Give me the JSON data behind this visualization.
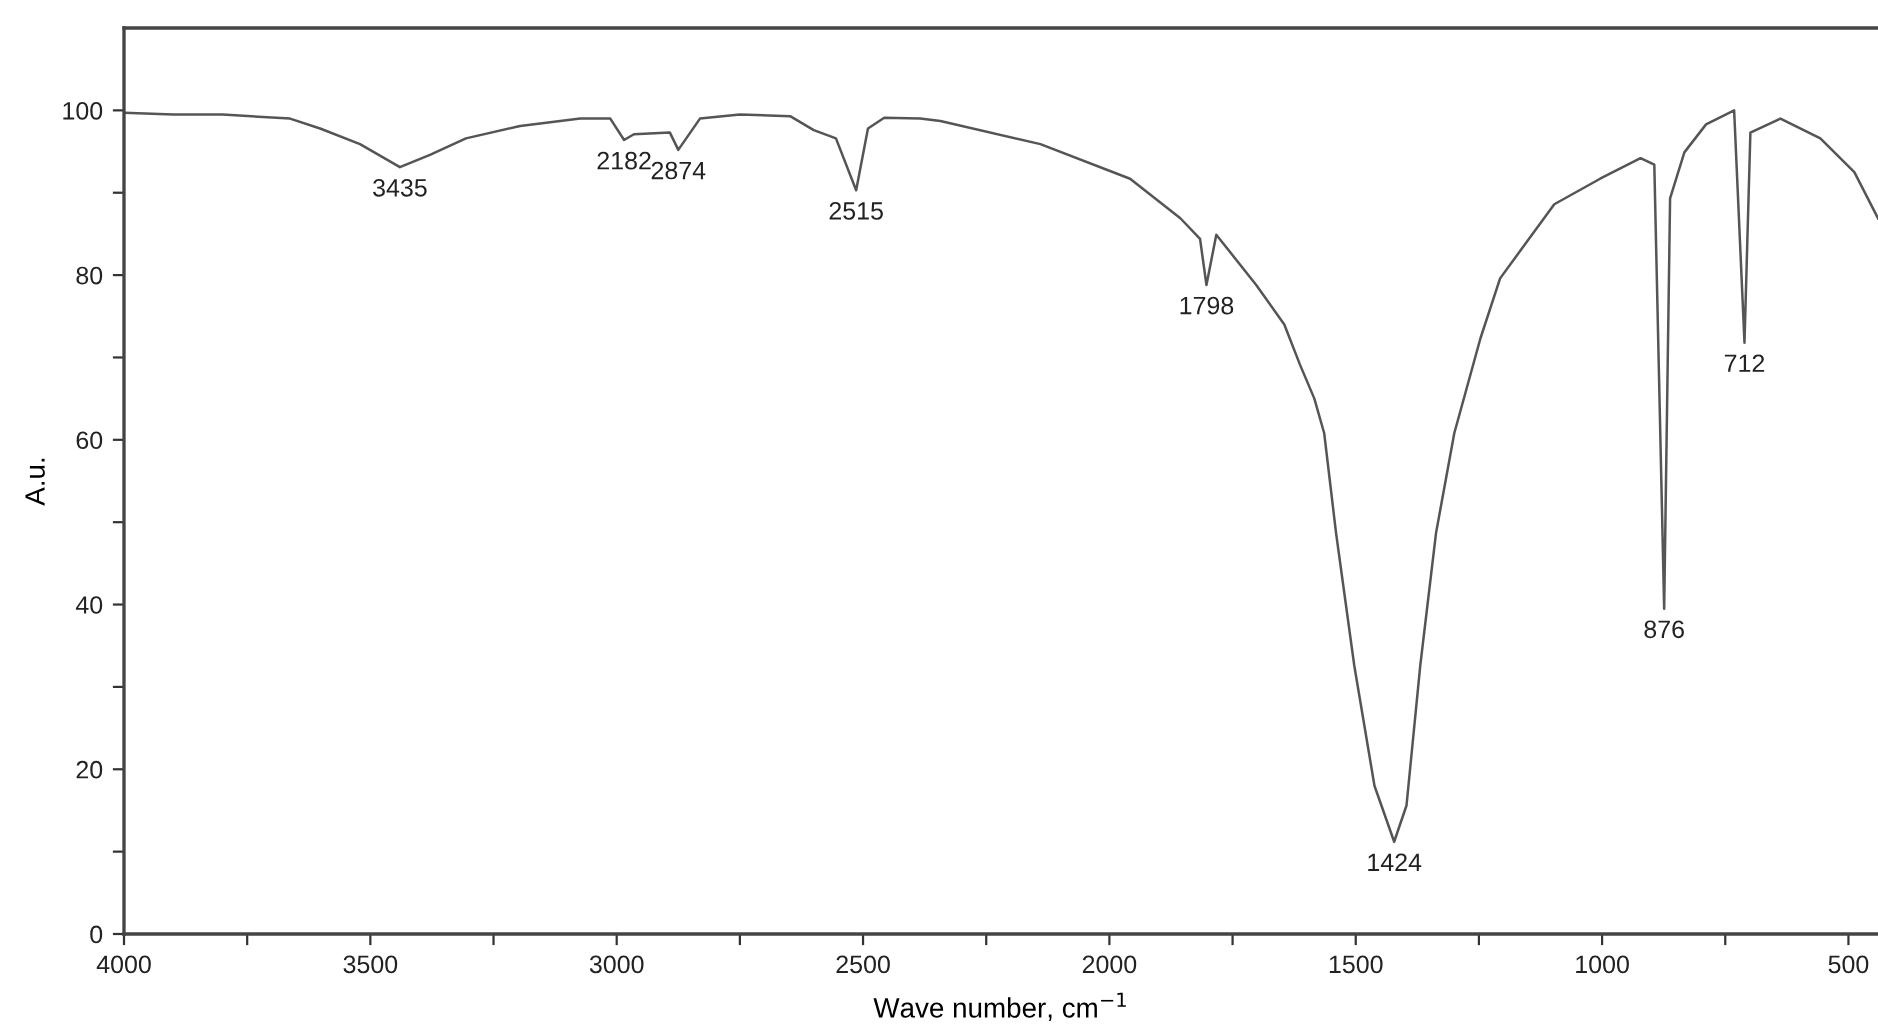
{
  "chart_data": {
    "type": "line",
    "xlabel": "Wave number, cm$^{−1}$",
    "ylabel": "A.u.",
    "xlim": [
      4000,
      440
    ],
    "ylim": [
      0,
      110
    ],
    "xticks": [
      4000,
      {
        "value": 3750,
        "label": null
      },
      3500,
      {
        "value": 3250,
        "label": null
      },
      3000,
      {
        "value": 2750,
        "label": null
      },
      2500,
      {
        "value": 2250,
        "label": null
      },
      2000,
      {
        "value": 1750,
        "label": null
      },
      1500,
      {
        "value": 1250,
        "label": null
      },
      1000,
      {
        "value": 750,
        "label": null
      },
      500
    ],
    "yticks": [
      0,
      {
        "value": 10,
        "label": null
      },
      20,
      {
        "value": 30,
        "label": null
      },
      40,
      {
        "value": 50,
        "label": null
      },
      60,
      {
        "value": 70,
        "label": null
      },
      80,
      {
        "value": 90,
        "label": null
      },
      100
    ],
    "grid": false,
    "legend": false,
    "marker": "none",
    "line_style": "solid",
    "series": [
      {
        "color": "#555555",
        "x": [
          4000,
          3900,
          3800,
          3663,
          3602,
          3521,
          3440,
          3379,
          3306,
          3196,
          3074,
          3013,
          2985,
          2965,
          2892,
          2875,
          2831,
          2750,
          2648,
          2600,
          2555,
          2514,
          2490,
          2457,
          2384,
          2343,
          2140,
          1958,
          1856,
          1816,
          1803,
          1783,
          1702,
          1645,
          1613,
          1584,
          1564,
          1540,
          1503,
          1462,
          1422,
          1397,
          1369,
          1337,
          1300,
          1247,
          1207,
          1097,
          1004,
          922,
          894,
          874,
          862,
          833,
          789,
          732,
          711,
          699,
          638,
          557,
          488,
          440
        ],
        "values": [
          99.7,
          99.5,
          99.5,
          99.0,
          97.8,
          95.9,
          93.1,
          94.6,
          96.6,
          98.1,
          99.0,
          99.0,
          96.4,
          97.1,
          97.3,
          95.2,
          99.0,
          99.5,
          99.3,
          97.6,
          96.6,
          90.3,
          97.8,
          99.1,
          99.0,
          98.7,
          95.9,
          91.7,
          86.9,
          84.4,
          78.8,
          84.9,
          78.8,
          74.0,
          69.1,
          65.0,
          60.8,
          48.7,
          32.6,
          18.0,
          11.2,
          15.6,
          32.6,
          48.7,
          60.8,
          72.3,
          79.6,
          88.6,
          91.7,
          94.2,
          93.4,
          39.5,
          89.3,
          94.9,
          98.3,
          100.0,
          71.8,
          97.3,
          99.0,
          96.6,
          92.5,
          86.9
        ]
      }
    ],
    "annotations": [
      {
        "text": "3435",
        "x": 3440,
        "y": 93.1
      },
      {
        "text": "2182",
        "x": 2985,
        "y": 96.4
      },
      {
        "text": "2874",
        "x": 2875,
        "y": 95.2
      },
      {
        "text": "2515",
        "x": 2514,
        "y": 90.3
      },
      {
        "text": "1798",
        "x": 1803,
        "y": 78.8
      },
      {
        "text": "1424",
        "x": 1422,
        "y": 11.2
      },
      {
        "text": "876",
        "x": 874,
        "y": 39.5
      },
      {
        "text": "712",
        "x": 711,
        "y": 71.8
      }
    ]
  }
}
